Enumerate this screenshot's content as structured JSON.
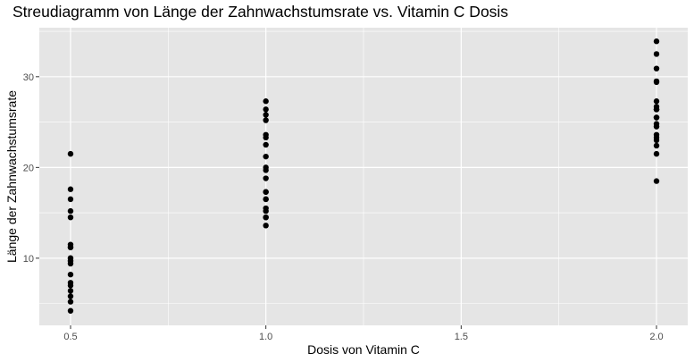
{
  "chart_data": {
    "type": "scatter",
    "title": "Streudiagramm von Länge der Zahnwachstumsrate vs. Vitamin C Dosis",
    "xlabel": "Dosis von Vitamin C",
    "ylabel": "Länge der Zahnwachstumsrate",
    "xlim": [
      0.42,
      2.08
    ],
    "ylim": [
      2.6,
      35.4
    ],
    "x_ticks": [
      {
        "value": 0.5,
        "label": "0.5"
      },
      {
        "value": 1.0,
        "label": "1.0"
      },
      {
        "value": 1.5,
        "label": "1.5"
      },
      {
        "value": 2.0,
        "label": "2.0"
      }
    ],
    "y_ticks": [
      {
        "value": 10,
        "label": "10"
      },
      {
        "value": 20,
        "label": "20"
      },
      {
        "value": 30,
        "label": "30"
      }
    ],
    "grid": true,
    "legend": "none",
    "colors": {
      "panel": "#e5e5e5",
      "grid": "#ffffff",
      "point": "#000000",
      "tick": "#4d4d4d"
    },
    "points": [
      {
        "x": 0.5,
        "y": 4.2
      },
      {
        "x": 0.5,
        "y": 11.5
      },
      {
        "x": 0.5,
        "y": 7.3
      },
      {
        "x": 0.5,
        "y": 5.8
      },
      {
        "x": 0.5,
        "y": 6.4
      },
      {
        "x": 0.5,
        "y": 10.0
      },
      {
        "x": 0.5,
        "y": 11.2
      },
      {
        "x": 0.5,
        "y": 11.2
      },
      {
        "x": 0.5,
        "y": 5.2
      },
      {
        "x": 0.5,
        "y": 7.0
      },
      {
        "x": 0.5,
        "y": 15.2
      },
      {
        "x": 0.5,
        "y": 21.5
      },
      {
        "x": 0.5,
        "y": 17.6
      },
      {
        "x": 0.5,
        "y": 9.7
      },
      {
        "x": 0.5,
        "y": 14.5
      },
      {
        "x": 0.5,
        "y": 10.0
      },
      {
        "x": 0.5,
        "y": 8.2
      },
      {
        "x": 0.5,
        "y": 9.4
      },
      {
        "x": 0.5,
        "y": 16.5
      },
      {
        "x": 0.5,
        "y": 9.7
      },
      {
        "x": 1.0,
        "y": 16.5
      },
      {
        "x": 1.0,
        "y": 16.5
      },
      {
        "x": 1.0,
        "y": 15.2
      },
      {
        "x": 1.0,
        "y": 17.3
      },
      {
        "x": 1.0,
        "y": 22.5
      },
      {
        "x": 1.0,
        "y": 17.3
      },
      {
        "x": 1.0,
        "y": 13.6
      },
      {
        "x": 1.0,
        "y": 14.5
      },
      {
        "x": 1.0,
        "y": 18.8
      },
      {
        "x": 1.0,
        "y": 15.5
      },
      {
        "x": 1.0,
        "y": 19.7
      },
      {
        "x": 1.0,
        "y": 23.3
      },
      {
        "x": 1.0,
        "y": 23.6
      },
      {
        "x": 1.0,
        "y": 26.4
      },
      {
        "x": 1.0,
        "y": 20.0
      },
      {
        "x": 1.0,
        "y": 25.2
      },
      {
        "x": 1.0,
        "y": 25.8
      },
      {
        "x": 1.0,
        "y": 21.2
      },
      {
        "x": 1.0,
        "y": 14.5
      },
      {
        "x": 1.0,
        "y": 27.3
      },
      {
        "x": 2.0,
        "y": 23.6
      },
      {
        "x": 2.0,
        "y": 18.5
      },
      {
        "x": 2.0,
        "y": 33.9
      },
      {
        "x": 2.0,
        "y": 25.5
      },
      {
        "x": 2.0,
        "y": 26.4
      },
      {
        "x": 2.0,
        "y": 32.5
      },
      {
        "x": 2.0,
        "y": 26.7
      },
      {
        "x": 2.0,
        "y": 21.5
      },
      {
        "x": 2.0,
        "y": 23.3
      },
      {
        "x": 2.0,
        "y": 29.5
      },
      {
        "x": 2.0,
        "y": 25.5
      },
      {
        "x": 2.0,
        "y": 26.4
      },
      {
        "x": 2.0,
        "y": 22.4
      },
      {
        "x": 2.0,
        "y": 24.5
      },
      {
        "x": 2.0,
        "y": 24.8
      },
      {
        "x": 2.0,
        "y": 30.9
      },
      {
        "x": 2.0,
        "y": 26.4
      },
      {
        "x": 2.0,
        "y": 27.3
      },
      {
        "x": 2.0,
        "y": 29.4
      },
      {
        "x": 2.0,
        "y": 23.0
      }
    ]
  }
}
